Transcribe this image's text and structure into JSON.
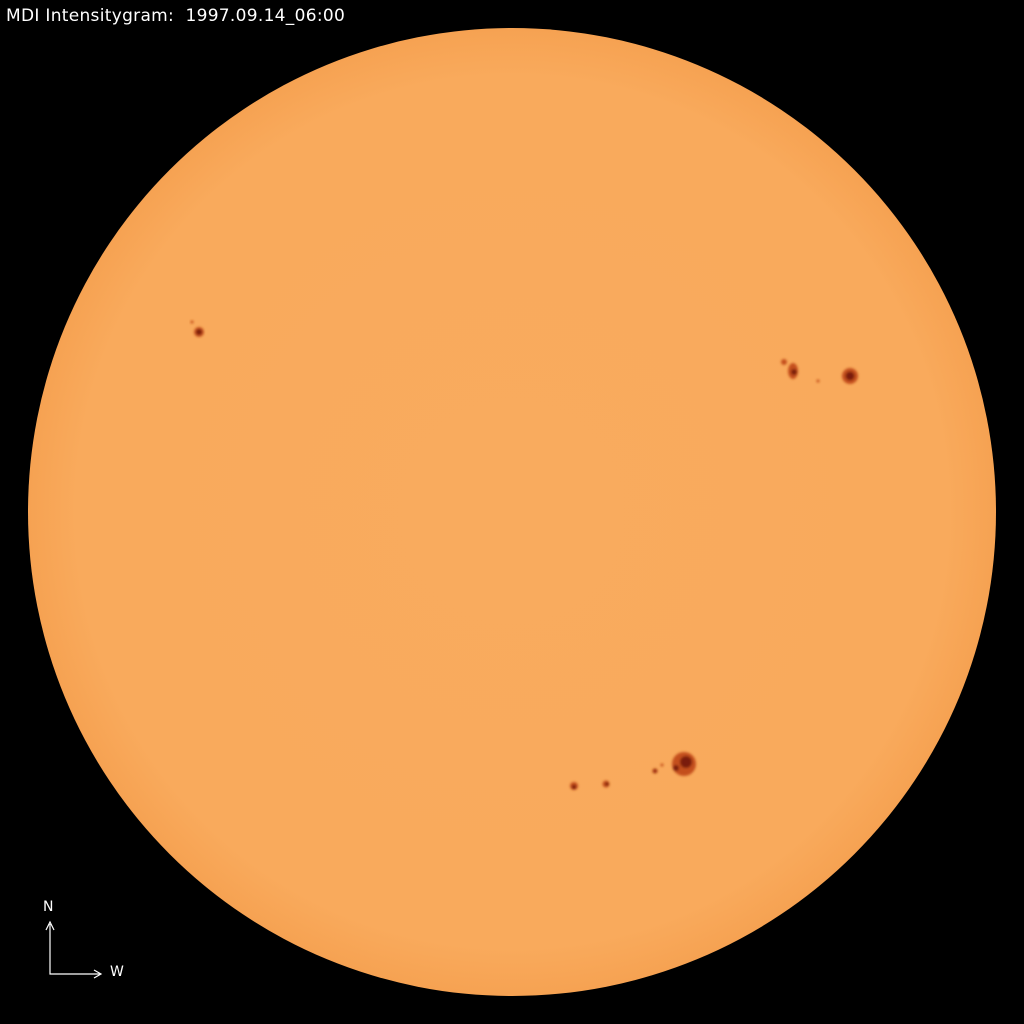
{
  "title": "MDI Intensitygram:  1997.09.14_06:00",
  "compass": {
    "north_label": "N",
    "west_label": "W"
  },
  "colors": {
    "background": "#000000",
    "disk": "#f9aa5d",
    "umbra": "#7a1a08",
    "penumbra": "#c4501c",
    "text": "#ffffff"
  }
}
